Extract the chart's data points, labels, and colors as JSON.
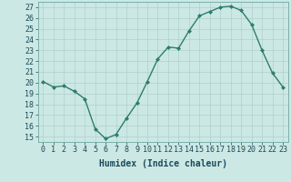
{
  "x": [
    0,
    1,
    2,
    3,
    4,
    5,
    6,
    7,
    8,
    9,
    10,
    11,
    12,
    13,
    14,
    15,
    16,
    17,
    18,
    19,
    20,
    21,
    22,
    23
  ],
  "y": [
    20.1,
    19.6,
    19.7,
    19.2,
    18.5,
    15.7,
    14.8,
    15.2,
    16.7,
    18.1,
    20.1,
    22.2,
    23.3,
    23.2,
    24.8,
    26.2,
    26.6,
    27.0,
    27.1,
    26.7,
    25.4,
    23.0,
    20.9,
    19.6
  ],
  "color": "#2e7d6e",
  "bg_color": "#cce8e4",
  "grid_color": "#aed0cc",
  "xlabel": "Humidex (Indice chaleur)",
  "ylim": [
    14.5,
    27.5
  ],
  "yticks": [
    15,
    16,
    17,
    18,
    19,
    20,
    21,
    22,
    23,
    24,
    25,
    26,
    27
  ],
  "xticks": [
    0,
    1,
    2,
    3,
    4,
    5,
    6,
    7,
    8,
    9,
    10,
    11,
    12,
    13,
    14,
    15,
    16,
    17,
    18,
    19,
    20,
    21,
    22,
    23
  ],
  "xtick_labels": [
    "0",
    "1",
    "2",
    "3",
    "4",
    "5",
    "6",
    "7",
    "8",
    "9",
    "10",
    "11",
    "12",
    "13",
    "14",
    "15",
    "16",
    "17",
    "18",
    "19",
    "20",
    "21",
    "22",
    "23"
  ],
  "marker": "D",
  "markersize": 2.0,
  "linewidth": 1.0,
  "xlabel_fontsize": 7,
  "tick_fontsize": 6
}
